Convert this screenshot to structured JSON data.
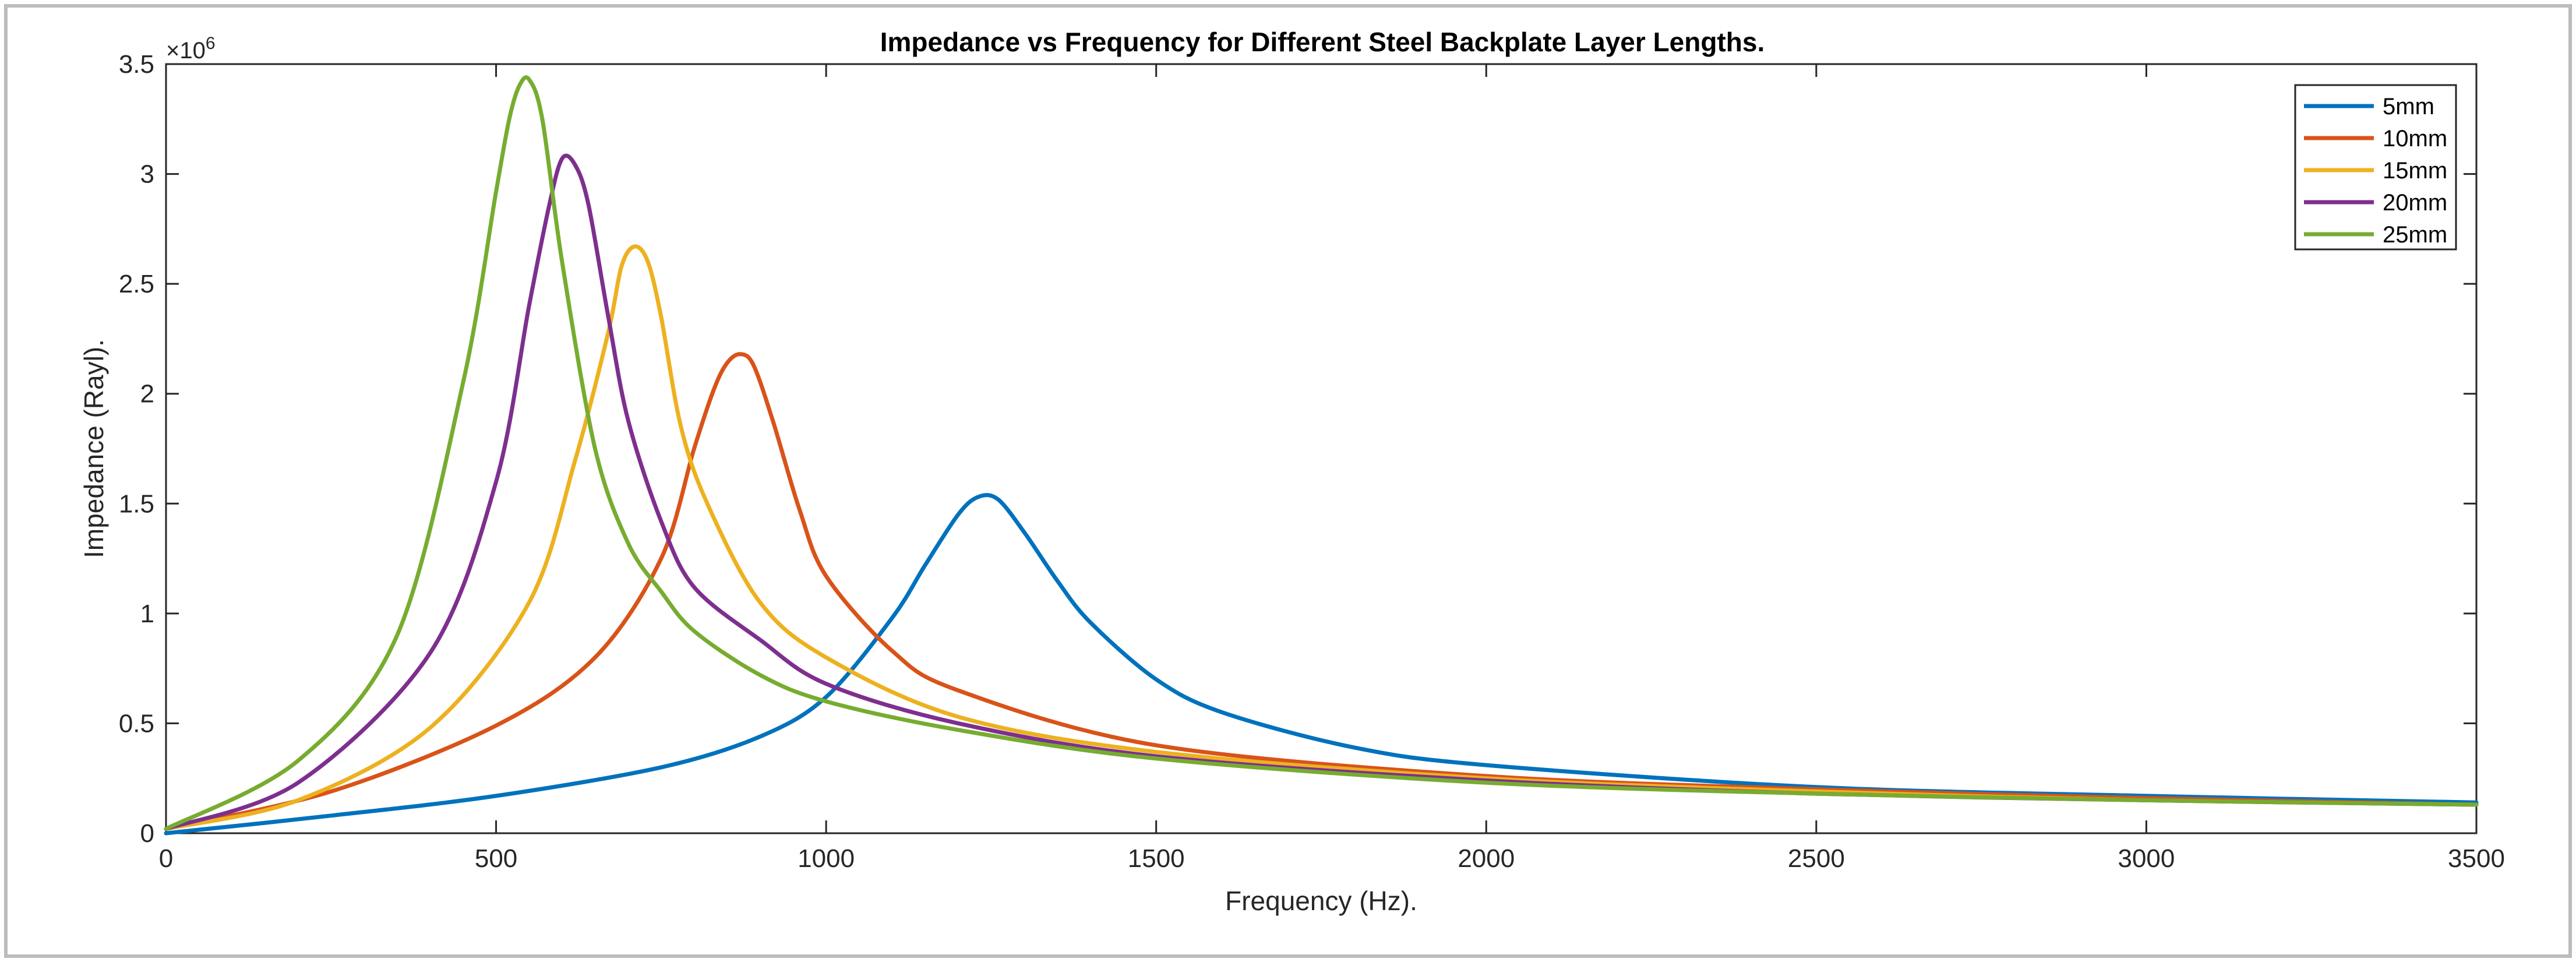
{
  "chart_data": {
    "type": "line",
    "title": "Impedance vs Frequency for Different Steel Backplate Layer Lengths.",
    "xlabel": "Frequency (Hz).",
    "ylabel": "Impedance (Rayl).",
    "y_exponent_label": "×10",
    "y_exponent_power": "6",
    "xlim": [
      0,
      3500
    ],
    "ylim": [
      0,
      3.5
    ],
    "x_ticks": [
      0,
      500,
      1000,
      1500,
      2000,
      2500,
      3000,
      3500
    ],
    "x_tick_labels": [
      "0",
      "500",
      "1000",
      "1500",
      "2000",
      "2500",
      "3000",
      "3500"
    ],
    "y_ticks": [
      0,
      0.5,
      1,
      1.5,
      2,
      2.5,
      3,
      3.5
    ],
    "y_tick_labels": [
      "0",
      "0.5",
      "1",
      "1.5",
      "2",
      "2.5",
      "3",
      "3.5"
    ],
    "grid": false,
    "legend_position": "top-right",
    "series": [
      {
        "name": "5mm",
        "color": "#0072BD",
        "x": [
          0,
          250,
          500,
          750,
          900,
          1000,
          1100,
          1150,
          1200,
          1230,
          1260,
          1300,
          1350,
          1400,
          1500,
          1600,
          1800,
          2000,
          2500,
          3000,
          3500
        ],
        "y": [
          0,
          0.08,
          0.17,
          0.3,
          0.44,
          0.62,
          0.98,
          1.22,
          1.45,
          1.53,
          1.52,
          1.37,
          1.15,
          0.96,
          0.7,
          0.55,
          0.39,
          0.31,
          0.21,
          0.17,
          0.14
        ]
      },
      {
        "name": "10mm",
        "color": "#D95319",
        "x": [
          0,
          250,
          500,
          650,
          750,
          800,
          830,
          850,
          870,
          890,
          920,
          960,
          1000,
          1100,
          1200,
          1500,
          2000,
          2500,
          3000,
          3500
        ],
        "y": [
          0.02,
          0.19,
          0.49,
          0.8,
          1.25,
          1.75,
          2.02,
          2.14,
          2.18,
          2.13,
          1.87,
          1.47,
          1.17,
          0.83,
          0.65,
          0.4,
          0.26,
          0.2,
          0.16,
          0.13
        ]
      },
      {
        "name": "15mm",
        "color": "#EDB120",
        "x": [
          0,
          200,
          400,
          550,
          620,
          670,
          690,
          710,
          730,
          750,
          780,
          820,
          900,
          1000,
          1200,
          1500,
          2000,
          2500,
          3000,
          3500
        ],
        "y": [
          0.02,
          0.15,
          0.48,
          1.05,
          1.7,
          2.28,
          2.58,
          2.67,
          2.6,
          2.35,
          1.85,
          1.5,
          1.05,
          0.8,
          0.53,
          0.37,
          0.25,
          0.19,
          0.15,
          0.13
        ]
      },
      {
        "name": "20mm",
        "color": "#7E2F8E",
        "x": [
          0,
          200,
          400,
          500,
          550,
          580,
          600,
          620,
          640,
          670,
          700,
          750,
          800,
          900,
          1000,
          1200,
          1500,
          2000,
          2500,
          3000,
          3500
        ],
        "y": [
          0.02,
          0.23,
          0.82,
          1.6,
          2.4,
          2.85,
          3.07,
          3.04,
          2.86,
          2.35,
          1.88,
          1.42,
          1.12,
          0.88,
          0.68,
          0.5,
          0.35,
          0.24,
          0.18,
          0.15,
          0.13
        ]
      },
      {
        "name": "25mm",
        "color": "#77AC30",
        "x": [
          0,
          200,
          350,
          450,
          500,
          520,
          535,
          550,
          570,
          600,
          650,
          700,
          750,
          800,
          900,
          1000,
          1200,
          1500,
          2000,
          2500,
          3000,
          3500
        ],
        "y": [
          0.02,
          0.33,
          0.9,
          2.05,
          2.92,
          3.25,
          3.4,
          3.43,
          3.25,
          2.6,
          1.75,
          1.32,
          1.1,
          0.92,
          0.72,
          0.6,
          0.47,
          0.34,
          0.23,
          0.18,
          0.15,
          0.13
        ]
      }
    ]
  }
}
